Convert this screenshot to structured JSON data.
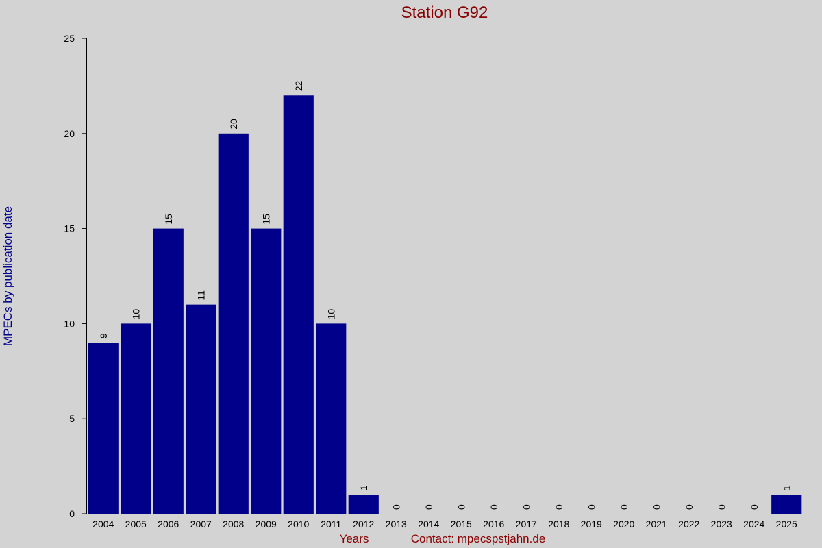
{
  "chart_data": {
    "type": "bar",
    "title": "Station G92",
    "y_label": "MPECs by publication date",
    "x_label": "Years",
    "note": "Contact: mpecspstjahn.de",
    "categories": [
      "2004",
      "2005",
      "2006",
      "2007",
      "2008",
      "2009",
      "2010",
      "2011",
      "2012",
      "2013",
      "2014",
      "2015",
      "2016",
      "2017",
      "2018",
      "2019",
      "2020",
      "2021",
      "2022",
      "2023",
      "2024",
      "2025"
    ],
    "values": [
      9,
      10,
      15,
      11,
      20,
      15,
      22,
      10,
      1,
      0,
      0,
      0,
      0,
      0,
      0,
      0,
      0,
      0,
      0,
      0,
      0,
      1
    ],
    "color": "#00008b",
    "ylim": [
      0,
      25
    ],
    "yticks": [
      0,
      5,
      10,
      15,
      20,
      25
    ],
    "grid": false
  }
}
